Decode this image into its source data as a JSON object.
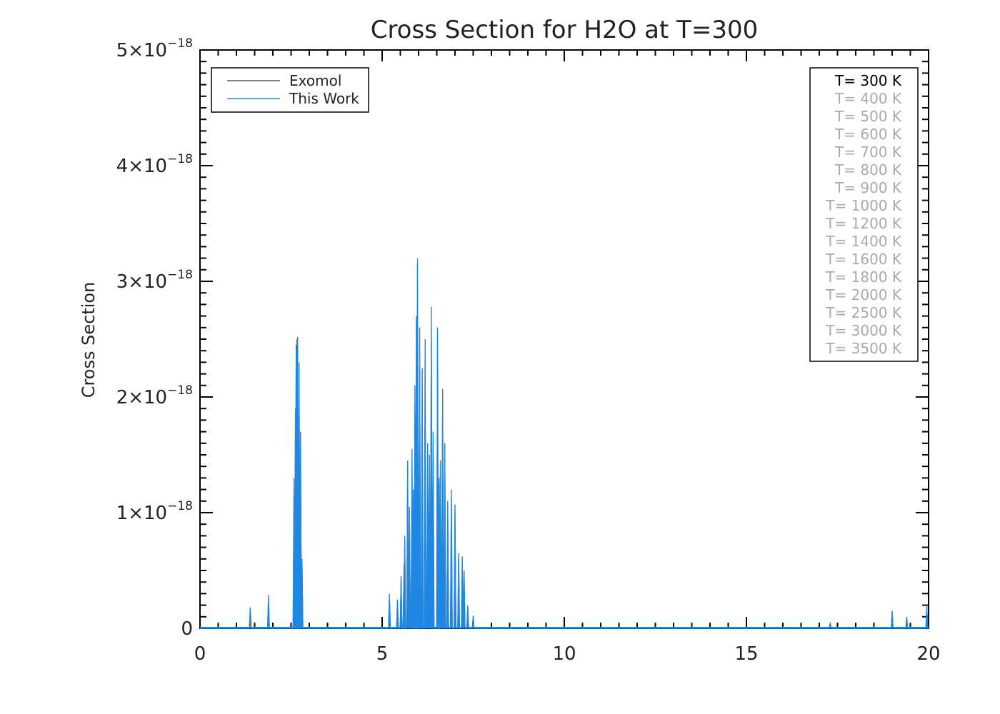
{
  "chart_data": {
    "type": "line",
    "title": "Cross Section for H2O at T=300",
    "xlabel": "",
    "ylabel": "Cross Section",
    "xlim": [
      0,
      20
    ],
    "ylim": [
      0,
      5e-18
    ],
    "xticks": [
      {
        "value": 0,
        "label": "0"
      },
      {
        "value": 5,
        "label": "5"
      },
      {
        "value": 10,
        "label": "10"
      },
      {
        "value": 15,
        "label": "15"
      },
      {
        "value": 20,
        "label": "20"
      }
    ],
    "yticks": [
      {
        "value": 0,
        "mant": "0",
        "exp": ""
      },
      {
        "value": 1e-18,
        "mant": "1×10",
        "exp": "−18"
      },
      {
        "value": 2e-18,
        "mant": "2×10",
        "exp": "−18"
      },
      {
        "value": 3e-18,
        "mant": "3×10",
        "exp": "−18"
      },
      {
        "value": 4e-18,
        "mant": "4×10",
        "exp": "−18"
      },
      {
        "value": 5e-18,
        "mant": "5×10",
        "exp": "−18"
      }
    ],
    "legend_placement": "top-left",
    "series": [
      {
        "name": "Exomol",
        "color": "#555555",
        "peaks": [
          [
            1.38,
            1.8e-19
          ],
          [
            1.88,
            2.9e-19
          ],
          [
            2.58,
            1.2e-18
          ],
          [
            2.62,
            1.9e-18
          ],
          [
            2.64,
            2.45e-18
          ],
          [
            2.66,
            2.5e-18
          ],
          [
            2.68,
            2.52e-18
          ],
          [
            2.72,
            2.3e-18
          ],
          [
            2.76,
            1.7e-18
          ],
          [
            2.8,
            6e-19
          ],
          [
            5.2,
            3e-19
          ],
          [
            5.42,
            2.5e-19
          ],
          [
            5.52,
            4.5e-19
          ],
          [
            5.6,
            5.5e-19
          ],
          [
            5.62,
            8e-19
          ],
          [
            5.7,
            1.45e-18
          ],
          [
            5.75,
            1.05e-18
          ],
          [
            5.82,
            1.55e-18
          ],
          [
            5.86,
            1.2e-18
          ],
          [
            5.9,
            2.1e-18
          ],
          [
            5.94,
            2.7e-18
          ],
          [
            5.97,
            3.15e-18
          ],
          [
            6.03,
            2.6e-18
          ],
          [
            6.1,
            2.25e-18
          ],
          [
            6.18,
            2.5e-18
          ],
          [
            6.25,
            1.6e-18
          ],
          [
            6.3,
            1.5e-18
          ],
          [
            6.35,
            2.78e-18
          ],
          [
            6.4,
            1.7e-18
          ],
          [
            6.52,
            2.6e-18
          ],
          [
            6.56,
            1.3e-18
          ],
          [
            6.6,
            1.45e-18
          ],
          [
            6.66,
            2.07e-18
          ],
          [
            6.72,
            1.6e-18
          ],
          [
            6.8,
            1.1e-18
          ],
          [
            6.9,
            1.2e-18
          ],
          [
            7.0,
            1.07e-18
          ],
          [
            7.1,
            6.5e-19
          ],
          [
            7.2,
            6.2e-19
          ],
          [
            7.25,
            5e-19
          ],
          [
            7.35,
            2e-19
          ],
          [
            7.5,
            1.1e-19
          ],
          [
            17.3,
            5e-20
          ],
          [
            19.0,
            1.5e-19
          ],
          [
            19.4,
            1e-19
          ],
          [
            19.95,
            2e-19
          ]
        ]
      },
      {
        "name": "This Work",
        "color": "#1e88e5",
        "peaks": [
          [
            1.38,
            1.8e-19
          ],
          [
            1.88,
            2.8e-19
          ],
          [
            2.58,
            1.3e-18
          ],
          [
            2.62,
            1.9e-18
          ],
          [
            2.64,
            2.4e-18
          ],
          [
            2.66,
            2.5e-18
          ],
          [
            2.68,
            2.5e-18
          ],
          [
            2.72,
            2.25e-18
          ],
          [
            2.76,
            1.65e-18
          ],
          [
            2.8,
            6e-19
          ],
          [
            5.2,
            3e-19
          ],
          [
            5.42,
            2.5e-19
          ],
          [
            5.52,
            4.5e-19
          ],
          [
            5.6,
            5.5e-19
          ],
          [
            5.62,
            8e-19
          ],
          [
            5.7,
            1.45e-18
          ],
          [
            5.75,
            1.05e-18
          ],
          [
            5.82,
            1.55e-18
          ],
          [
            5.86,
            1.2e-18
          ],
          [
            5.9,
            2.1e-18
          ],
          [
            5.94,
            2.7e-18
          ],
          [
            5.97,
            3.2e-18
          ],
          [
            6.03,
            2.6e-18
          ],
          [
            6.1,
            2.25e-18
          ],
          [
            6.18,
            2.5e-18
          ],
          [
            6.25,
            1.6e-18
          ],
          [
            6.3,
            1.5e-18
          ],
          [
            6.35,
            2.75e-18
          ],
          [
            6.4,
            1.7e-18
          ],
          [
            6.52,
            2.6e-18
          ],
          [
            6.56,
            1.3e-18
          ],
          [
            6.6,
            1.45e-18
          ],
          [
            6.66,
            2.07e-18
          ],
          [
            6.72,
            1.6e-18
          ],
          [
            6.8,
            1.1e-18
          ],
          [
            6.9,
            1.2e-18
          ],
          [
            7.0,
            1.07e-18
          ],
          [
            7.1,
            6.5e-19
          ],
          [
            7.2,
            6.2e-19
          ],
          [
            7.25,
            5e-19
          ],
          [
            7.35,
            2e-19
          ],
          [
            7.5,
            1.1e-19
          ],
          [
            17.3,
            5e-20
          ],
          [
            19.0,
            1.5e-19
          ],
          [
            19.4,
            1e-19
          ],
          [
            19.95,
            2e-19
          ]
        ]
      }
    ],
    "temperature_legend": {
      "entries": [
        {
          "label": "T=  300 K",
          "active": true
        },
        {
          "label": "T=  400 K",
          "active": false
        },
        {
          "label": "T=  500 K",
          "active": false
        },
        {
          "label": "T=  600 K",
          "active": false
        },
        {
          "label": "T=  700 K",
          "active": false
        },
        {
          "label": "T=  800 K",
          "active": false
        },
        {
          "label": "T=  900 K",
          "active": false
        },
        {
          "label": "T= 1000 K",
          "active": false
        },
        {
          "label": "T= 1200 K",
          "active": false
        },
        {
          "label": "T= 1400 K",
          "active": false
        },
        {
          "label": "T= 1600 K",
          "active": false
        },
        {
          "label": "T= 1800 K",
          "active": false
        },
        {
          "label": "T= 2000 K",
          "active": false
        },
        {
          "label": "T= 2500 K",
          "active": false
        },
        {
          "label": "T= 3000 K",
          "active": false
        },
        {
          "label": "T= 3500 K",
          "active": false
        }
      ],
      "active_color": "#000000",
      "inactive_color": "#aaaaaa"
    }
  }
}
